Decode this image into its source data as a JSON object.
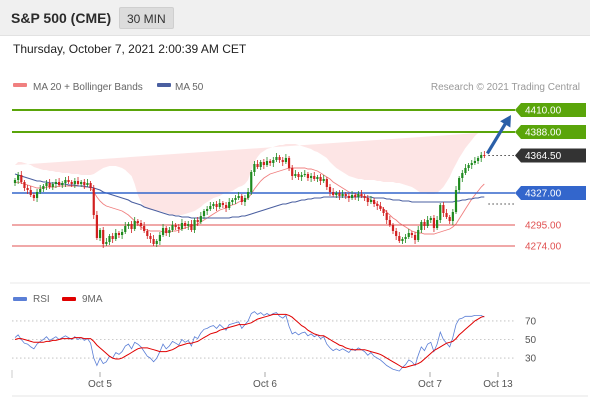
{
  "header": {
    "title": "S&P 500 (CME)",
    "interval": "30 MIN"
  },
  "datetime": "Thursday, October 7, 2021 2:00:39 AM CET",
  "legend": {
    "ma20_label": "MA 20 + Bollinger Bands",
    "ma50_label": "MA 50",
    "credit": "Research © 2021 Trading Central",
    "rsi_label": "RSI",
    "ma9_label": "9MA"
  },
  "colors": {
    "green_level": "#5aa50a",
    "blue_level": "#3366cc",
    "red_level": "#e05050",
    "candle_up": "#1e8a1e",
    "candle_down": "#d22020",
    "bollinger_fill": "#fcdcdc",
    "ma20": "#f08080",
    "ma50": "#4a5fa0",
    "rsi": "#5b7fd6",
    "rsi_ma": "#e00000",
    "current_price_bg": "#333333",
    "arrow": "#2a5fa8"
  },
  "chart_data": [
    {
      "type": "candlestick",
      "x_ticks": [
        "Oct 5",
        "Oct 6",
        "Oct 7",
        "Oct 13"
      ],
      "ylim": [
        4255,
        4420
      ],
      "levels": [
        {
          "value": 4410.0,
          "label": "4410.00",
          "style": "resistance",
          "color": "#5aa50a"
        },
        {
          "value": 4388.0,
          "label": "4388.00",
          "style": "resistance",
          "color": "#5aa50a"
        },
        {
          "value": 4364.5,
          "label": "4364.50",
          "style": "current",
          "color": "#333333"
        },
        {
          "value": 4327.0,
          "label": "4327.00",
          "style": "pivot",
          "color": "#3366cc"
        },
        {
          "value": 4295.0,
          "label": "4295.00",
          "style": "support",
          "color": "#e05050"
        },
        {
          "value": 4274.0,
          "label": "4274.00",
          "style": "support",
          "color": "#e05050"
        }
      ],
      "close": [
        4340,
        4345,
        4338,
        4332,
        4330,
        4325,
        4322,
        4328,
        4331,
        4334,
        4337,
        4333,
        4336,
        4338,
        4335,
        4337,
        4340,
        4338,
        4336,
        4339,
        4336,
        4338,
        4335,
        4337,
        4332,
        4305,
        4282,
        4290,
        4276,
        4278,
        4284,
        4281,
        4287,
        4285,
        4288,
        4294,
        4296,
        4291,
        4299,
        4297,
        4294,
        4289,
        4284,
        4281,
        4276,
        4279,
        4285,
        4292,
        4287,
        4290,
        4295,
        4293,
        4291,
        4297,
        4294,
        4296,
        4290,
        4300,
        4298,
        4304,
        4309,
        4311,
        4314,
        4316,
        4313,
        4317,
        4315,
        4312,
        4318,
        4320,
        4322,
        4324,
        4318,
        4322,
        4328,
        4348,
        4356,
        4353,
        4358,
        4355,
        4359,
        4357,
        4360,
        4363,
        4360,
        4358,
        4362,
        4352,
        4344,
        4346,
        4343,
        4345,
        4346,
        4342,
        4344,
        4341,
        4343,
        4339,
        4341,
        4333,
        4328,
        4325,
        4327,
        4324,
        4326,
        4324,
        4322,
        4325,
        4323,
        4326,
        4324,
        4322,
        4318,
        4320,
        4316,
        4314,
        4311,
        4307,
        4300,
        4295,
        4289,
        4284,
        4279,
        4281,
        4283,
        4287,
        4285,
        4280,
        4290,
        4298,
        4294,
        4300,
        4302,
        4292,
        4300,
        4315,
        4307,
        4303,
        4299,
        4308,
        4330,
        4342,
        4347,
        4352,
        4355,
        4357,
        4359,
        4362,
        4365,
        4364
      ],
      "bollinger_upper": [
        4355,
        4358,
        4358,
        4357,
        4356,
        4355,
        4353,
        4352,
        4351,
        4350,
        4350,
        4349,
        4349,
        4348,
        4348,
        4347,
        4347,
        4347,
        4346,
        4346,
        4346,
        4345,
        4345,
        4345,
        4345,
        4346,
        4348,
        4350,
        4352,
        4353,
        4354,
        4354,
        4354,
        4353,
        4352,
        4350,
        4347,
        4344,
        4336,
        4325,
        4318,
        4313,
        4311,
        4310,
        4310,
        4309,
        4309,
        4308,
        4307,
        4306,
        4305,
        4305,
        4305,
        4305,
        4306,
        4307,
        4308,
        4309,
        4311,
        4313,
        4316,
        4318,
        4320,
        4322,
        4323,
        4324,
        4326,
        4327,
        4328,
        4329,
        4331,
        4333,
        4334,
        4336,
        4340,
        4350,
        4358,
        4363,
        4367,
        4369,
        4371,
        4372,
        4373,
        4374,
        4375,
        4375,
        4376,
        4376,
        4376,
        4376,
        4375,
        4374,
        4373,
        4372,
        4371,
        4369,
        4368,
        4366,
        4364,
        4362,
        4358,
        4355,
        4352,
        4350,
        4348,
        4346,
        4344,
        4343,
        4342,
        4341,
        4341,
        4340,
        4340,
        4340,
        4340,
        4339,
        4339,
        4338,
        4338,
        4338,
        4338,
        4337,
        4337,
        4336,
        4335,
        4334,
        4333,
        4331,
        4329,
        4327,
        4327,
        4326,
        4326,
        4326,
        4327,
        4330,
        4333,
        4338,
        4343,
        4350,
        4356,
        4362,
        4367,
        4372,
        4376,
        4380,
        4384,
        4387
      ],
      "bollinger_lower": [
        4320,
        4318,
        4316,
        4315,
        4314,
        4313,
        4312,
        4313,
        4314,
        4315,
        4316,
        4317,
        4318,
        4319,
        4320,
        4321,
        4322,
        4322,
        4323,
        4323,
        4323,
        4323,
        4322,
        4322,
        4320,
        4310,
        4298,
        4288,
        4280,
        4276,
        4274,
        4273,
        4273,
        4273,
        4274,
        4274,
        4275,
        4275,
        4275,
        4275,
        4275,
        4274,
        4273,
        4272,
        4271,
        4271,
        4272,
        4273,
        4273,
        4274,
        4275,
        4276,
        4276,
        4277,
        4278,
        4278,
        4279,
        4280,
        4281,
        4283,
        4285,
        4287,
        4289,
        4291,
        4293,
        4295,
        4297,
        4298,
        4300,
        4301,
        4302,
        4303,
        4303,
        4303,
        4304,
        4305,
        4307,
        4309,
        4311,
        4314,
        4316,
        4318,
        4320,
        4322,
        4324,
        4326,
        4328,
        4329,
        4330,
        4331,
        4332,
        4332,
        4333,
        4333,
        4333,
        4332,
        4331,
        4330,
        4329,
        4327,
        4323,
        4319,
        4316,
        4313,
        4311,
        4310,
        4309,
        4309,
        4309,
        4309,
        4309,
        4308,
        4307,
        4305,
        4302,
        4299,
        4296,
        4292,
        4288,
        4284,
        4280,
        4277,
        4275,
        4274,
        4273,
        4272,
        4272,
        4271,
        4271,
        4271,
        4272,
        4272,
        4272,
        4273,
        4274,
        4276,
        4278,
        4279,
        4279,
        4278,
        4276,
        4273,
        4271,
        4270,
        4269,
        4269,
        4268,
        4268,
        4268,
        4268
      ],
      "ma20": [
        4337,
        4338,
        4337,
        4336,
        4335,
        4334,
        4333,
        4332,
        4332,
        4332,
        4333,
        4333,
        4333,
        4333,
        4334,
        4334,
        4334,
        4334,
        4334,
        4334,
        4334,
        4334,
        4333,
        4333,
        4332,
        4328,
        4323,
        4319,
        4316,
        4314,
        4313,
        4312,
        4311,
        4310,
        4309,
        4307,
        4305,
        4302,
        4299,
        4296,
        4293,
        4291,
        4290,
        4289,
        4289,
        4289,
        4289,
        4288,
        4288,
        4288,
        4289,
        4289,
        4290,
        4291,
        4292,
        4293,
        4294,
        4295,
        4296,
        4298,
        4300,
        4302,
        4304,
        4306,
        4308,
        4310,
        4311,
        4312,
        4314,
        4315,
        4316,
        4318,
        4319,
        4320,
        4322,
        4326,
        4331,
        4335,
        4339,
        4342,
        4344,
        4346,
        4347,
        4348,
        4349,
        4350,
        4351,
        4352,
        4352,
        4352,
        4352,
        4352,
        4352,
        4351,
        4351,
        4350,
        4349,
        4347,
        4345,
        4343,
        4341,
        4338,
        4336,
        4334,
        4332,
        4330,
        4328,
        4327,
        4326,
        4325,
        4324,
        4323,
        4322,
        4320,
        4318,
        4316,
        4314,
        4311,
        4308,
        4305,
        4302,
        4300,
        4297,
        4295,
        4293,
        4291,
        4289,
        4288,
        4287,
        4287,
        4286,
        4286,
        4286,
        4286,
        4287,
        4288,
        4289,
        4290,
        4291,
        4293,
        4296,
        4301,
        4306,
        4311,
        4316,
        4321,
        4325,
        4329,
        4333,
        4336
      ],
      "ma50": [
        4346,
        4345,
        4344,
        4343,
        4342,
        4341,
        4340,
        4339,
        4339,
        4338,
        4338,
        4337,
        4337,
        4337,
        4336,
        4336,
        4336,
        4335,
        4335,
        4335,
        4334,
        4334,
        4334,
        4333,
        4333,
        4332,
        4331,
        4330,
        4328,
        4327,
        4326,
        4325,
        4324,
        4323,
        4322,
        4321,
        4320,
        4318,
        4317,
        4316,
        4315,
        4313,
        4312,
        4311,
        4310,
        4309,
        4308,
        4307,
        4306,
        4305,
        4305,
        4304,
        4304,
        4303,
        4303,
        4303,
        4302,
        4302,
        4302,
        4302,
        4302,
        4302,
        4302,
        4302,
        4302,
        4302,
        4302,
        4302,
        4302,
        4303,
        4303,
        4303,
        4304,
        4304,
        4305,
        4306,
        4307,
        4308,
        4309,
        4310,
        4311,
        4312,
        4313,
        4314,
        4315,
        4316,
        4316,
        4317,
        4318,
        4318,
        4319,
        4320,
        4320,
        4321,
        4321,
        4322,
        4322,
        4322,
        4323,
        4323,
        4323,
        4323,
        4323,
        4323,
        4323,
        4323,
        4323,
        4323,
        4323,
        4323,
        4323,
        4323,
        4323,
        4323,
        4322,
        4322,
        4322,
        4322,
        4321,
        4321,
        4320,
        4320,
        4320,
        4319,
        4319,
        4319,
        4318,
        4318,
        4318,
        4318,
        4318,
        4318,
        4318,
        4318,
        4318,
        4318,
        4318,
        4318,
        4318,
        4318,
        4319,
        4319,
        4320,
        4320,
        4321,
        4321,
        4322,
        4322,
        4323,
        4323
      ],
      "forecast_arrow": {
        "from": 4364.5,
        "to": 4410.0
      }
    },
    {
      "type": "line",
      "name": "RSI",
      "y_ticks": [
        70,
        50,
        30
      ],
      "ylim": [
        15,
        85
      ],
      "rsi": [
        52,
        55,
        50,
        46,
        45,
        42,
        40,
        45,
        48,
        50,
        53,
        49,
        51,
        53,
        50,
        52,
        54,
        52,
        50,
        53,
        50,
        52,
        49,
        51,
        46,
        30,
        22,
        30,
        24,
        26,
        32,
        30,
        36,
        34,
        37,
        43,
        45,
        40,
        47,
        45,
        42,
        37,
        32,
        30,
        26,
        30,
        37,
        45,
        40,
        43,
        48,
        46,
        44,
        50,
        47,
        49,
        43,
        53,
        51,
        57,
        61,
        62,
        64,
        65,
        62,
        66,
        63,
        60,
        66,
        67,
        68,
        69,
        62,
        66,
        70,
        78,
        80,
        77,
        79,
        76,
        78,
        76,
        78,
        79,
        75,
        73,
        76,
        64,
        56,
        58,
        55,
        57,
        58,
        54,
        56,
        53,
        55,
        51,
        53,
        45,
        41,
        38,
        40,
        38,
        40,
        38,
        36,
        40,
        38,
        41,
        39,
        37,
        33,
        36,
        32,
        30,
        28,
        25,
        22,
        20,
        18,
        17,
        16,
        20,
        23,
        28,
        26,
        22,
        33,
        42,
        38,
        45,
        47,
        37,
        45,
        58,
        50,
        46,
        42,
        52,
        66,
        72,
        73,
        75,
        75,
        75,
        76,
        76,
        76,
        74
      ],
      "rsi_ma9": [
        50,
        51,
        51,
        50,
        49,
        48,
        47,
        47,
        47,
        47,
        48,
        48,
        49,
        49,
        50,
        51,
        51,
        51,
        51,
        52,
        52,
        52,
        51,
        51,
        51,
        48,
        44,
        41,
        38,
        35,
        32,
        30,
        29,
        29,
        30,
        32,
        34,
        36,
        38,
        40,
        41,
        41,
        41,
        40,
        39,
        38,
        37,
        37,
        37,
        38,
        39,
        41,
        43,
        44,
        45,
        46,
        46,
        47,
        48,
        50,
        52,
        54,
        56,
        57,
        58,
        60,
        61,
        62,
        63,
        64,
        65,
        66,
        66,
        66,
        67,
        68,
        70,
        72,
        73,
        74,
        75,
        76,
        77,
        77,
        77,
        77,
        77,
        76,
        74,
        71,
        68,
        65,
        63,
        60,
        58,
        56,
        55,
        54,
        54,
        52,
        50,
        48,
        46,
        44,
        43,
        41,
        40,
        39,
        39,
        39,
        39,
        39,
        38,
        37,
        36,
        35,
        34,
        32,
        30,
        28,
        26,
        24,
        22,
        20,
        20,
        21,
        22,
        23,
        24,
        26,
        29,
        32,
        35,
        38,
        40,
        42,
        44,
        46,
        47,
        48,
        51,
        55,
        58,
        61,
        64,
        67,
        70,
        72,
        74,
        75
      ]
    }
  ]
}
